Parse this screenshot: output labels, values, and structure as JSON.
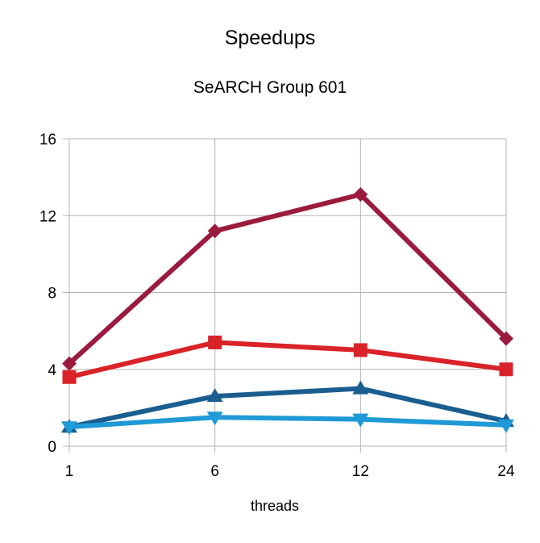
{
  "chart_data": {
    "type": "line",
    "title": "Speedups",
    "subtitle": "SeARCH Group 601",
    "xlabel": "threads",
    "ylabel": "",
    "categories": [
      "1",
      "6",
      "12",
      "24"
    ],
    "ylim": [
      0,
      16
    ],
    "yticks": [
      0,
      4,
      8,
      12,
      16
    ],
    "grid": true,
    "legend": "none",
    "series": [
      {
        "color": "#9b1b3f",
        "marker": "diamond",
        "values": [
          4.3,
          11.2,
          13.1,
          5.6
        ]
      },
      {
        "color": "#d92328",
        "marker": "square",
        "values": [
          3.6,
          5.4,
          5.0,
          4.0
        ]
      },
      {
        "color": "#1a5e90",
        "marker": "triangle-up",
        "values": [
          1.0,
          2.6,
          3.0,
          1.3
        ]
      },
      {
        "color": "#1f9ad6",
        "marker": "triangle-down",
        "values": [
          1.0,
          1.5,
          1.4,
          1.1
        ]
      }
    ]
  }
}
